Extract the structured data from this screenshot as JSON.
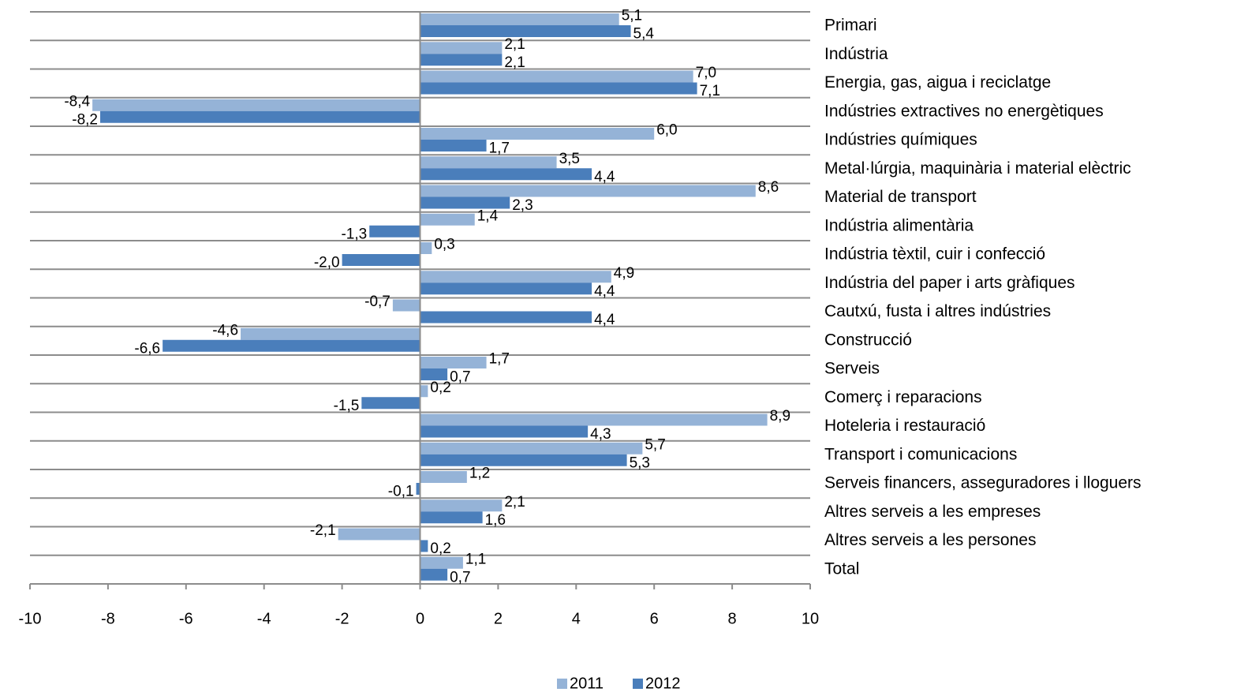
{
  "chart_data": {
    "type": "barh",
    "categories": [
      "Primari",
      "Indústria",
      "Energia, gas, aigua i reciclatge",
      "Indústries extractives no energètiques",
      "Indústries químiques",
      "Metal·lúrgia, maquinària i material elèctric",
      "Material de transport",
      "Indústria alimentària",
      "Indústria tèxtil, cuir i confecció",
      "Indústria del paper i arts gràfiques",
      "Cautxú, fusta i altres indústries",
      "Construcció",
      "Serveis",
      "Comerç i reparacions",
      "Hoteleria i restauració",
      "Transport i comunicacions",
      "Serveis financers, asseguradores i lloguers",
      "Altres serveis a les empreses",
      "Altres serveis a les persones",
      "Total"
    ],
    "series": [
      {
        "name": "2011",
        "color": "#95b3d7",
        "values": [
          5.1,
          2.1,
          7.0,
          -8.4,
          6.0,
          3.5,
          8.6,
          1.4,
          0.3,
          4.9,
          -0.7,
          -4.6,
          1.7,
          0.2,
          8.9,
          5.7,
          1.2,
          2.1,
          -2.1,
          1.1
        ],
        "value_labels": [
          "5,1",
          "2,1",
          "7,0",
          "-8,4",
          "6,0",
          "3,5",
          "8,6",
          "1,4",
          "0,3",
          "4,9",
          "-0,7",
          "-4,6",
          "1,7",
          "0,2",
          "8,9",
          "5,7",
          "1,2",
          "2,1",
          "-2,1",
          "1,1"
        ]
      },
      {
        "name": "2012",
        "color": "#4a7ebb",
        "values": [
          5.4,
          2.1,
          7.1,
          -8.2,
          1.7,
          4.4,
          2.3,
          -1.3,
          -2.0,
          4.4,
          4.4,
          -6.6,
          0.7,
          -1.5,
          4.3,
          5.3,
          -0.1,
          1.6,
          0.2,
          0.7
        ],
        "value_labels": [
          "5,4",
          "2,1",
          "7,1",
          "-8,2",
          "1,7",
          "4,4",
          "2,3",
          "-1,3",
          "-2,0",
          "4,4",
          "4,4",
          "-6,6",
          "0,7",
          "-1,5",
          "4,3",
          "5,3",
          "-0,1",
          "1,6",
          "0,2",
          "0,7"
        ]
      }
    ],
    "xlim": [
      -10,
      10
    ],
    "xticks": [
      -10,
      -8,
      -6,
      -4,
      -2,
      0,
      2,
      4,
      6,
      8,
      10
    ],
    "legend": "bottom"
  }
}
